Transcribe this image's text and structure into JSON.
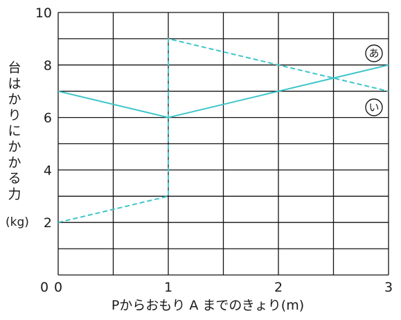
{
  "chart_data": {
    "type": "line",
    "title": "",
    "xlabel": "Pからおもり A までのきょり(m)",
    "ylabel": "台はかりにかかる力",
    "yunit": "(kg)",
    "xlim": [
      0,
      3
    ],
    "ylim": [
      0,
      10
    ],
    "xticks": [
      0,
      1,
      2,
      3
    ],
    "yticks": [
      2,
      4,
      6,
      8,
      10
    ],
    "grid": true,
    "grid_minor_x": 0.5,
    "grid_minor_y": 1,
    "colors": {
      "series": "#3ec6c9",
      "grid": "#111111"
    },
    "series": [
      {
        "name": "あ",
        "style": "dashed",
        "x": [
          0,
          1,
          1,
          3
        ],
        "y": [
          2,
          3,
          9,
          7
        ]
      },
      {
        "name": "い",
        "style": "solid",
        "x": [
          0,
          1,
          3
        ],
        "y": [
          7,
          6,
          8
        ]
      }
    ]
  }
}
